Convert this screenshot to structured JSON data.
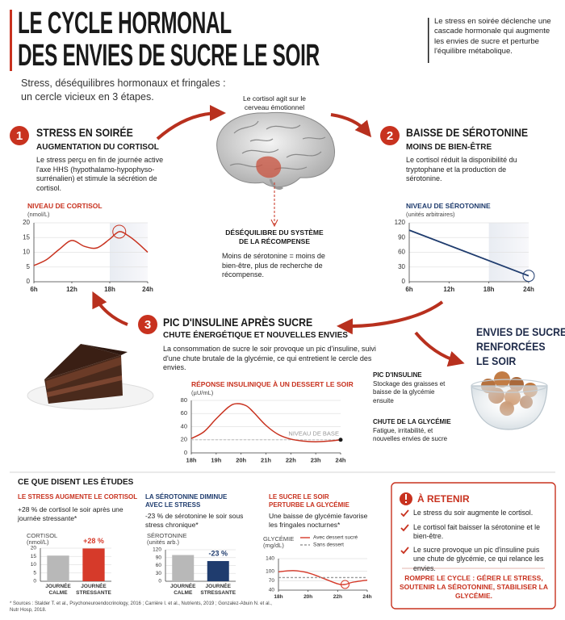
{
  "header": {
    "title_lines": [
      "LE CYCLE HORMONAL",
      "DES ENVIES DE SUCRE LE SOIR"
    ],
    "note": "Le stress en soirée déclenche une cascade hormonale qui augmente les envies de sucre et perturbe l'équilibre métabolique.",
    "subtitle_lines": [
      "Stress, déséquilibres hormonaux et fringales :",
      "un cercle vicieux en 3 étapes."
    ]
  },
  "brain": {
    "caption": "Le cortisol agit sur le cerveau émotionnel",
    "imbalance_title": "DÉSÉQUILIBRE DU SYSTÈME DE LA RÉCOMPENSE",
    "imbalance_text": "Moins de sérotonine = moins de bien-être, plus de recherche de récompense."
  },
  "steps": [
    {
      "number": "1",
      "title": "STRESS EN SOIRÉE",
      "subtitle": "AUGMENTATION DU CORTISOL",
      "text": "Le stress perçu en fin de journée active l'axe HHS (hypothalamo-hypophyso-surrénalien) et stimule la sécrétion de cortisol."
    },
    {
      "number": "2",
      "title": "BAISSE DE SÉROTONINE",
      "subtitle": "MOINS DE BIEN-ÊTRE",
      "text": "Le cortisol réduit la disponibilité du tryptophane et la production de sérotonine."
    },
    {
      "number": "3",
      "title": "PIC D'INSULINE APRÈS SUCRE",
      "subtitle": "CHUTE ÉNERGÉTIQUE ET NOUVELLES ENVIES",
      "text": "La consommation de sucre le soir provoque un pic d'insuline, suivi d'une chute brutale de la glycémie, ce qui entretient le cercle des envies."
    }
  ],
  "insulin_notes": [
    {
      "title": "PIC D'INSULINE",
      "text": "Stockage des graisses et baisse de la glycémie ensuite"
    },
    {
      "title": "CHUTE DE LA GLYCÉMIE",
      "text": "Fatigue, irritabilité, et nouvelles envies de sucre"
    }
  ],
  "cravings": {
    "title_lines": [
      "ENVIES DE SUCRE",
      "RENFORCÉES",
      "LE SOIR"
    ]
  },
  "studies": {
    "title": "CE QUE DISENT LES ÉTUDES",
    "items": [
      {
        "heading": "LE STRESS AUGMENTE LE CORTISOL",
        "text": "+28 % de cortisol le soir après une journée stressante*"
      },
      {
        "heading": "LA SÉROTONINE DIMINUE AVEC LE STRESS",
        "text": "-23 % de sérotonine le soir sous stress chronique*"
      },
      {
        "heading": "LE SUCRE LE SOIR PERTURBE LA GLYCÉMIE",
        "text": "Une baisse de glycémie favorise les fringales nocturnes*"
      }
    ]
  },
  "retain": {
    "title": "À RETENIR",
    "items": [
      "Le stress du soir augmente le cortisol.",
      "Le cortisol fait baisser la sérotonine et le bien-être.",
      "Le sucre provoque un pic d'insuline puis une chute de glycémie, ce qui relance les envies."
    ],
    "conclusion": "ROMPRE LE CYCLE : GÉRER LE STRESS, SOUTENIR LA SÉROTONINE, STABILISER LA GLYCÉMIE."
  },
  "footnote": "* Sources : Stalder T. et al., Psychoneuroendocrinology, 2016 ; Carrière I. et al., Nutrients, 2019 ; Gonzalez-Abuin N. et al., Nutr Hosp, 2018.",
  "chart_data": [
    {
      "type": "line",
      "title": "NIVEAU DE CORTISOL",
      "y_label": "(nmol/L)",
      "x": [
        6,
        8,
        10,
        12,
        14,
        16,
        18,
        19.5,
        21,
        22.5,
        24
      ],
      "values": [
        5.5,
        7.5,
        11,
        14,
        12,
        11.5,
        14.5,
        17,
        15.5,
        13,
        10
      ],
      "color": "#c8321f",
      "xlim": [
        6,
        24
      ],
      "xticks": [
        {
          "value": 6,
          "label": "6h"
        },
        {
          "value": 12,
          "label": "12h"
        },
        {
          "value": 18,
          "label": "18h"
        },
        {
          "value": 24,
          "label": "24h"
        }
      ],
      "ylim": [
        0,
        20
      ],
      "yticks": [
        0,
        5,
        10,
        15,
        20
      ],
      "highlight_x": [
        18,
        24
      ],
      "marker_x": 19.5
    },
    {
      "type": "line",
      "title": "NIVEAU DE SÉROTONINE",
      "y_label": "(unités arbitraires)",
      "x": [
        6,
        24
      ],
      "values": [
        105,
        12
      ],
      "color": "#1f3c6e",
      "xlim": [
        6,
        24
      ],
      "xticks": [
        {
          "value": 6,
          "label": "6h"
        },
        {
          "value": 12,
          "label": "12h"
        },
        {
          "value": 18,
          "label": "18h"
        },
        {
          "value": 24,
          "label": "24h"
        }
      ],
      "ylim": [
        0,
        120
      ],
      "yticks": [
        0,
        30,
        60,
        90,
        120
      ],
      "highlight_x": [
        18,
        24
      ],
      "marker_x": 24
    },
    {
      "type": "line",
      "title": "RÉPONSE INSULINIQUE À UN DESSERT LE SOIR",
      "y_label": "(µU/mL)",
      "x": [
        18,
        18.5,
        19,
        19.5,
        19.8,
        20.2,
        20.5,
        21,
        21.5,
        22,
        22.5,
        23,
        23.5,
        24
      ],
      "values": [
        22,
        32,
        52,
        70,
        75,
        72,
        62,
        42,
        28,
        21,
        18,
        17,
        18,
        20
      ],
      "color": "#c8321f",
      "xlim": [
        18,
        24
      ],
      "xticks": [
        {
          "value": 18,
          "label": "18h"
        },
        {
          "value": 19,
          "label": "19h"
        },
        {
          "value": 20,
          "label": "20h"
        },
        {
          "value": 21,
          "label": "21h"
        },
        {
          "value": 22,
          "label": "22h"
        },
        {
          "value": 23,
          "label": "23h"
        },
        {
          "value": 24,
          "label": "24h"
        }
      ],
      "ylim": [
        0,
        80
      ],
      "yticks": [
        0,
        20,
        40,
        60,
        80
      ],
      "baseline": 20,
      "baseline_label": "NIVEAU DE BASE",
      "marker_x": 24
    },
    {
      "type": "bar",
      "y_label": "CORTISOL",
      "y_unit": "(nmol/L)",
      "categories": [
        "JOURNÉE CALME",
        "JOURNÉE STRESSANTE"
      ],
      "values": [
        15.5,
        19.8
      ],
      "colors": [
        "#b8b8b8",
        "#d63a2a"
      ],
      "ylim": [
        0,
        20
      ],
      "yticks": [
        0,
        5,
        10,
        15,
        20
      ],
      "annotation": "+28 %",
      "annotation_color": "#d63a2a"
    },
    {
      "type": "bar",
      "y_label": "SÉROTONINE",
      "y_unit": "(unités arb.)",
      "categories": [
        "JOURNÉE CALME",
        "JOURNÉE STRESSANTE"
      ],
      "values": [
        100,
        77
      ],
      "colors": [
        "#b8b8b8",
        "#1f3c6e"
      ],
      "ylim": [
        0,
        120
      ],
      "yticks": [
        0,
        30,
        60,
        90,
        120
      ],
      "annotation": "-23 %",
      "annotation_color": "#1f3c6e"
    },
    {
      "type": "line",
      "y_label": "GLYCÉMIE",
      "y_unit": "(mg/dL)",
      "x": [
        18,
        19,
        20,
        21,
        22,
        22.5,
        23,
        24
      ],
      "series": [
        {
          "name": "Avec dessert sucré",
          "color": "#d63a2a",
          "values": [
            98,
            102,
            95,
            78,
            60,
            58,
            65,
            72
          ]
        },
        {
          "name": "Sans dessert",
          "color": "#9a9a9a",
          "dash": true,
          "values": [
            80,
            80,
            80,
            80,
            80,
            80,
            80,
            80
          ]
        }
      ],
      "xlim": [
        18,
        24
      ],
      "xticks": [
        {
          "value": 18,
          "label": "18h"
        },
        {
          "value": 20,
          "label": "20h"
        },
        {
          "value": 22,
          "label": "22h"
        },
        {
          "value": 24,
          "label": "24h"
        }
      ],
      "ylim": [
        40,
        140
      ],
      "yticks": [
        40,
        70,
        100,
        140
      ],
      "marker_x": 22.5
    }
  ]
}
